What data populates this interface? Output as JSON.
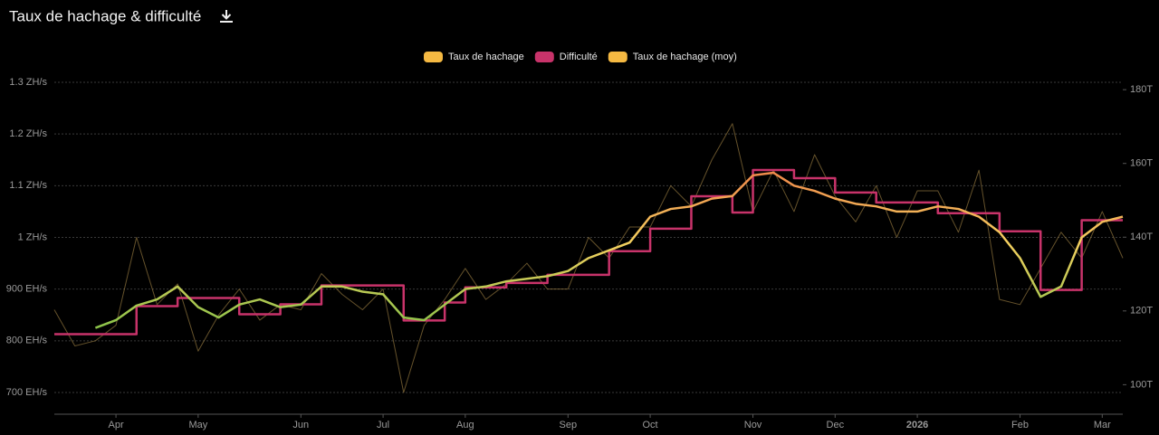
{
  "chart_data": {
    "type": "line",
    "title": "Taux de hachage & difficulté",
    "categories": [
      null,
      null,
      null,
      "Apr",
      null,
      null,
      null,
      "May",
      null,
      null,
      null,
      null,
      "Jun",
      null,
      null,
      null,
      "Jul",
      null,
      null,
      null,
      "Aug",
      null,
      null,
      null,
      null,
      "Sep",
      null,
      null,
      null,
      "Oct",
      null,
      null,
      null,
      null,
      "Nov",
      null,
      null,
      null,
      "Dec",
      null,
      null,
      null,
      "2026",
      null,
      null,
      null,
      null,
      "Feb",
      null,
      null,
      null,
      "Mar",
      null
    ],
    "series": [
      {
        "name": "Taux de hachage",
        "color": "#f5b942",
        "values": [
          860,
          790,
          800,
          830,
          1000,
          870,
          910,
          780,
          850,
          900,
          840,
          870,
          860,
          930,
          890,
          860,
          900,
          700,
          830,
          880,
          940,
          880,
          910,
          950,
          900,
          900,
          1000,
          960,
          1020,
          1020,
          1100,
          1060,
          1150,
          1220,
          1050,
          1130,
          1050,
          1160,
          1080,
          1030,
          1100,
          1000,
          1090,
          1090,
          1010,
          1130,
          880,
          870,
          940,
          1010,
          960,
          1050,
          960
        ]
      },
      {
        "name": "Difficulté",
        "color": "#c8336a",
        "axis": "y2",
        "values": [
          113.7,
          113.7,
          113.7,
          113.7,
          121.3,
          121.3,
          123.5,
          123.5,
          123.5,
          119.1,
          119.1,
          121.8,
          121.8,
          126.9,
          126.9,
          126.9,
          126.9,
          117.4,
          117.4,
          122.3,
          126.4,
          126.4,
          127.6,
          127.6,
          129.8,
          129.8,
          129.8,
          136.2,
          136.2,
          142.3,
          142.3,
          151.1,
          151.1,
          146.7,
          158.2,
          158.2,
          156,
          156,
          152.1,
          152.1,
          149.4,
          149.4,
          149.4,
          146.5,
          146.5,
          146.5,
          141.6,
          141.6,
          125.7,
          125.7,
          144.6,
          144.6,
          144.6
        ]
      },
      {
        "name": "Taux de hachage (moy)",
        "color": "#f5b942",
        "values": [
          null,
          null,
          825,
          840,
          868,
          880,
          905,
          865,
          845,
          870,
          880,
          865,
          870,
          905,
          905,
          895,
          890,
          845,
          840,
          870,
          900,
          905,
          915,
          920,
          925,
          935,
          960,
          975,
          990,
          1040,
          1055,
          1060,
          1075,
          1080,
          1120,
          1125,
          1100,
          1090,
          1075,
          1065,
          1060,
          1050,
          1050,
          1060,
          1055,
          1040,
          1010,
          960,
          885,
          905,
          1000,
          1030,
          1040
        ]
      }
    ],
    "ylim": [
      658,
      1300
    ],
    "yticks": [
      {
        "value": 700,
        "label": "700 EH/s"
      },
      {
        "value": 800,
        "label": "800 EH/s"
      },
      {
        "value": 900,
        "label": "900 EH/s"
      },
      {
        "value": 1000,
        "label": "1 ZH/s"
      },
      {
        "value": 1100,
        "label": "1.1 ZH/s"
      },
      {
        "value": 1200,
        "label": "1.2 ZH/s"
      },
      {
        "value": 1300,
        "label": "1.3 ZH/s"
      }
    ],
    "y2lim": [
      92,
      182
    ],
    "y2ticks": [
      {
        "value": 100,
        "label": "100T"
      },
      {
        "value": 120,
        "label": "120T"
      },
      {
        "value": 140,
        "label": "140T"
      },
      {
        "value": 160,
        "label": "160T"
      },
      {
        "value": 180,
        "label": "180T"
      }
    ],
    "grid": true
  }
}
